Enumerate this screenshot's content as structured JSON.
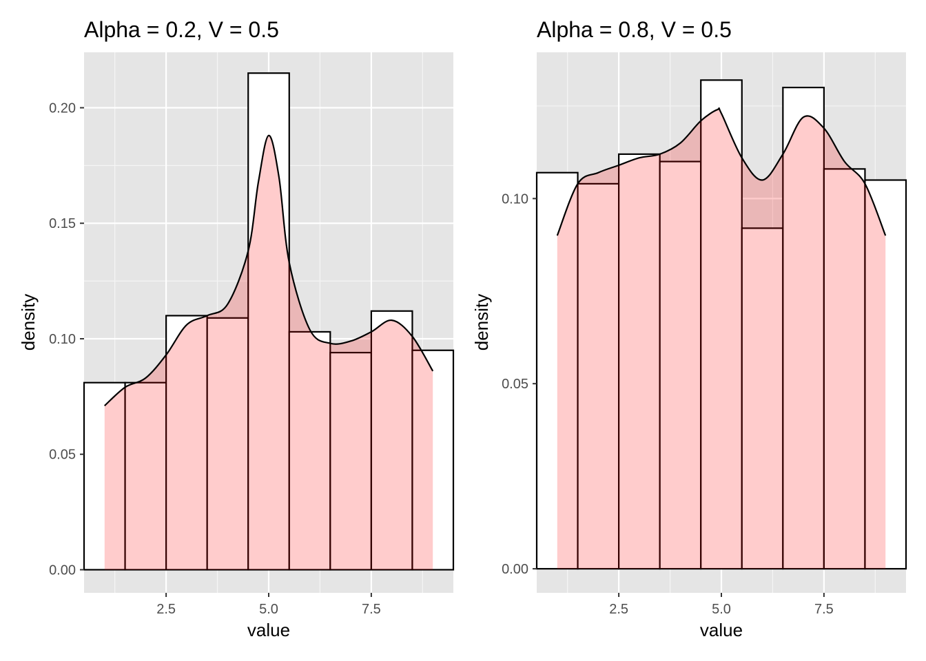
{
  "chart_data": [
    {
      "type": "bar",
      "title": "Alpha = 0.2, V = 0.5",
      "xlabel": "value",
      "ylabel": "density",
      "xlim": [
        0.5,
        9.5
      ],
      "ylim": [
        -0.01,
        0.224
      ],
      "grid": true,
      "x_ticks": [
        "2.5",
        "5.0",
        "7.5"
      ],
      "y_ticks": [
        "0.00",
        "0.05",
        "0.10",
        "0.15",
        "0.20"
      ],
      "histogram": {
        "name": "histogram",
        "bins": [
          {
            "x0": 0.5,
            "x1": 1.5,
            "density": 0.081
          },
          {
            "x0": 1.5,
            "x1": 2.5,
            "density": 0.081
          },
          {
            "x0": 2.5,
            "x1": 3.5,
            "density": 0.11
          },
          {
            "x0": 3.5,
            "x1": 4.5,
            "density": 0.109
          },
          {
            "x0": 4.5,
            "x1": 5.5,
            "density": 0.215
          },
          {
            "x0": 5.5,
            "x1": 6.5,
            "density": 0.103
          },
          {
            "x0": 6.5,
            "x1": 7.5,
            "density": 0.094
          },
          {
            "x0": 7.5,
            "x1": 8.5,
            "density": 0.112
          },
          {
            "x0": 8.5,
            "x1": 9.5,
            "density": 0.095
          }
        ],
        "fill": "#ffffff",
        "stroke": "#000000"
      },
      "density_curve": {
        "name": "density",
        "fill": "#ff0000",
        "fill_opacity": 0.2,
        "stroke": "#000000",
        "x": [
          1.0,
          1.5,
          2.0,
          2.5,
          3.0,
          3.5,
          4.0,
          4.5,
          4.75,
          5.0,
          5.25,
          5.5,
          6.0,
          6.5,
          7.0,
          7.5,
          8.0,
          8.5,
          9.0
        ],
        "y": [
          0.071,
          0.079,
          0.083,
          0.093,
          0.106,
          0.11,
          0.115,
          0.138,
          0.168,
          0.188,
          0.17,
          0.133,
          0.104,
          0.098,
          0.099,
          0.103,
          0.108,
          0.101,
          0.086
        ]
      }
    },
    {
      "type": "bar",
      "title": "Alpha = 0.8, V = 0.5",
      "xlabel": "value",
      "ylabel": "density",
      "xlim": [
        0.5,
        9.5
      ],
      "ylim": [
        -0.0065,
        0.1395
      ],
      "grid": true,
      "x_ticks": [
        "2.5",
        "5.0",
        "7.5"
      ],
      "y_ticks": [
        "0.00",
        "0.05",
        "0.10"
      ],
      "histogram": {
        "name": "histogram",
        "bins": [
          {
            "x0": 0.5,
            "x1": 1.5,
            "density": 0.107
          },
          {
            "x0": 1.5,
            "x1": 2.5,
            "density": 0.104
          },
          {
            "x0": 2.5,
            "x1": 3.5,
            "density": 0.112
          },
          {
            "x0": 3.5,
            "x1": 4.5,
            "density": 0.11
          },
          {
            "x0": 4.5,
            "x1": 5.5,
            "density": 0.132
          },
          {
            "x0": 5.5,
            "x1": 6.5,
            "density": 0.092
          },
          {
            "x0": 6.5,
            "x1": 7.5,
            "density": 0.13
          },
          {
            "x0": 7.5,
            "x1": 8.5,
            "density": 0.108
          },
          {
            "x0": 8.5,
            "x1": 9.5,
            "density": 0.105
          }
        ],
        "fill": "#ffffff",
        "stroke": "#000000"
      },
      "density_curve": {
        "name": "density",
        "fill": "#ff0000",
        "fill_opacity": 0.2,
        "stroke": "#000000",
        "x": [
          1.0,
          1.5,
          2.0,
          2.5,
          3.0,
          3.5,
          4.0,
          4.5,
          4.9,
          5.0,
          5.5,
          6.0,
          6.5,
          7.0,
          7.5,
          8.0,
          8.5,
          9.0
        ],
        "y": [
          0.09,
          0.104,
          0.107,
          0.109,
          0.111,
          0.112,
          0.115,
          0.121,
          0.124,
          0.123,
          0.111,
          0.105,
          0.112,
          0.122,
          0.119,
          0.11,
          0.104,
          0.09
        ]
      }
    }
  ]
}
